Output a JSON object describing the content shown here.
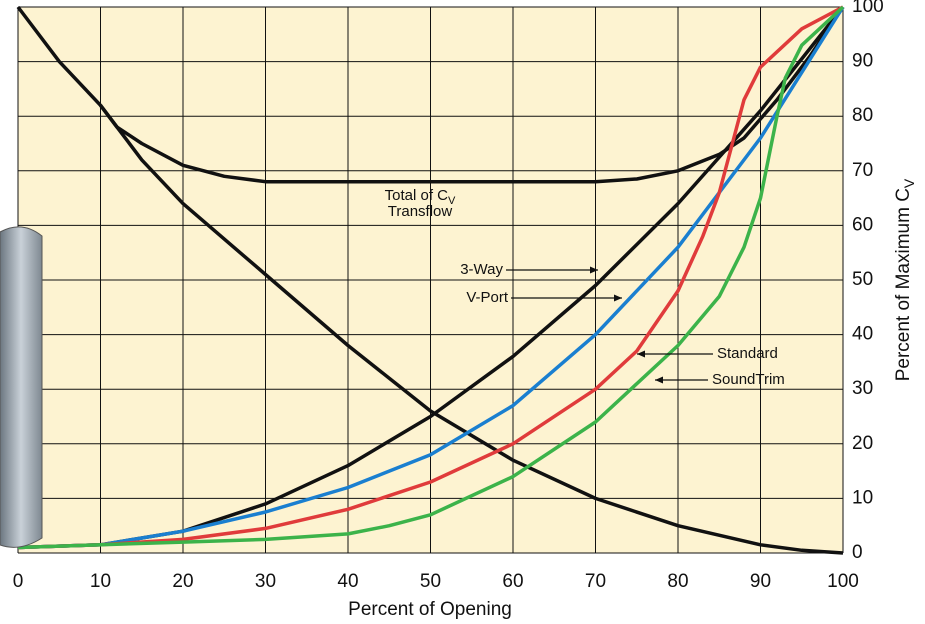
{
  "chart_data": {
    "type": "line",
    "x_label": "Percent of Opening",
    "y_label": "Percent of Maximum C",
    "y_label_subscript": "V",
    "xlim": [
      0,
      100
    ],
    "ylim": [
      0,
      100
    ],
    "xticks": [
      0,
      10,
      20,
      30,
      40,
      50,
      60,
      70,
      80,
      90,
      100
    ],
    "yticks": [
      0,
      10,
      20,
      30,
      40,
      50,
      60,
      70,
      80,
      90,
      100
    ],
    "grid": true,
    "background": "#fdf3d1",
    "series": [
      {
        "name": "Transflow",
        "color": "#111111",
        "x": [
          0,
          5,
          10,
          15,
          20,
          30,
          40,
          50,
          60,
          70,
          80,
          90,
          95,
          100
        ],
        "values": [
          100,
          90,
          82,
          72,
          64,
          51,
          38,
          26,
          17,
          10,
          5,
          1.5,
          0.5,
          0
        ]
      },
      {
        "name": "Total of C",
        "color": "#111111",
        "x": [
          10,
          12,
          15,
          20,
          25,
          30,
          40,
          50,
          60,
          70,
          75,
          80,
          85,
          88,
          92,
          96,
          100
        ],
        "values": [
          82,
          78,
          75,
          71,
          69,
          68,
          68,
          68,
          68,
          68,
          68.5,
          70,
          73,
          76,
          83,
          91,
          100
        ]
      },
      {
        "name": "3-Way",
        "color": "#111111",
        "x": [
          0,
          10,
          20,
          30,
          40,
          50,
          60,
          70,
          80,
          90,
          100
        ],
        "values": [
          1,
          1.5,
          4,
          9,
          16,
          25,
          36,
          49,
          64,
          81,
          100
        ]
      },
      {
        "name": "V-Port",
        "color": "#1a7fd0",
        "x": [
          0,
          10,
          20,
          30,
          40,
          50,
          60,
          70,
          80,
          90,
          100
        ],
        "values": [
          1,
          1.5,
          4,
          7.5,
          12,
          18,
          27,
          40,
          56,
          76,
          100
        ]
      },
      {
        "name": "Standard",
        "color": "#e03b3b",
        "x": [
          0,
          10,
          20,
          30,
          40,
          50,
          60,
          70,
          75,
          80,
          83,
          85,
          88,
          90,
          95,
          100
        ],
        "values": [
          1,
          1.5,
          2.5,
          4.5,
          8,
          13,
          20,
          30,
          37,
          48,
          58,
          66,
          83,
          89,
          96,
          100
        ]
      },
      {
        "name": "SoundTrim",
        "color": "#3cb34a",
        "x": [
          0,
          20,
          30,
          40,
          45,
          50,
          60,
          70,
          80,
          85,
          88,
          90,
          92,
          93,
          95,
          100
        ],
        "values": [
          1,
          2,
          2.5,
          3.5,
          5,
          7,
          14,
          24,
          38,
          47,
          56,
          65,
          80,
          87,
          93,
          100
        ]
      }
    ],
    "annotations": [
      "Total of C",
      "V",
      "Transflow",
      "3-Way",
      "V-Port",
      "Standard",
      "SoundTrim"
    ]
  }
}
